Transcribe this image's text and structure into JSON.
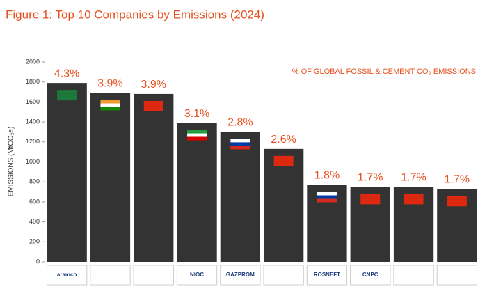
{
  "chart_data": {
    "type": "bar",
    "title": "Figure 1: Top 10 Companies by Emissions (2024)",
    "y_label": "EMISSIONS (MtCO₂e)",
    "annotation": "% OF GLOBAL FOSSIL & CEMENT CO₂ EMISSIONS",
    "categories": [
      "aramco",
      null,
      null,
      "NIOC",
      "GAZPROM",
      null,
      "ROSNEFT",
      "CNPC",
      null,
      null
    ],
    "values": [
      1790,
      1690,
      1680,
      1390,
      1300,
      1130,
      770,
      750,
      750,
      730
    ],
    "shares": [
      "4.3%",
      "3.9%",
      "3.9%",
      "3.1%",
      "2.8%",
      "2.6%",
      "1.8%",
      "1.7%",
      "1.7%",
      "1.7%"
    ],
    "color": "#333333",
    "label_color": "#e8501e",
    "ylim": [
      0,
      2000
    ],
    "yticks": [
      0,
      200,
      400,
      600,
      800,
      1000,
      1200,
      1400,
      1600,
      1800,
      2000
    ],
    "grid": false
  }
}
